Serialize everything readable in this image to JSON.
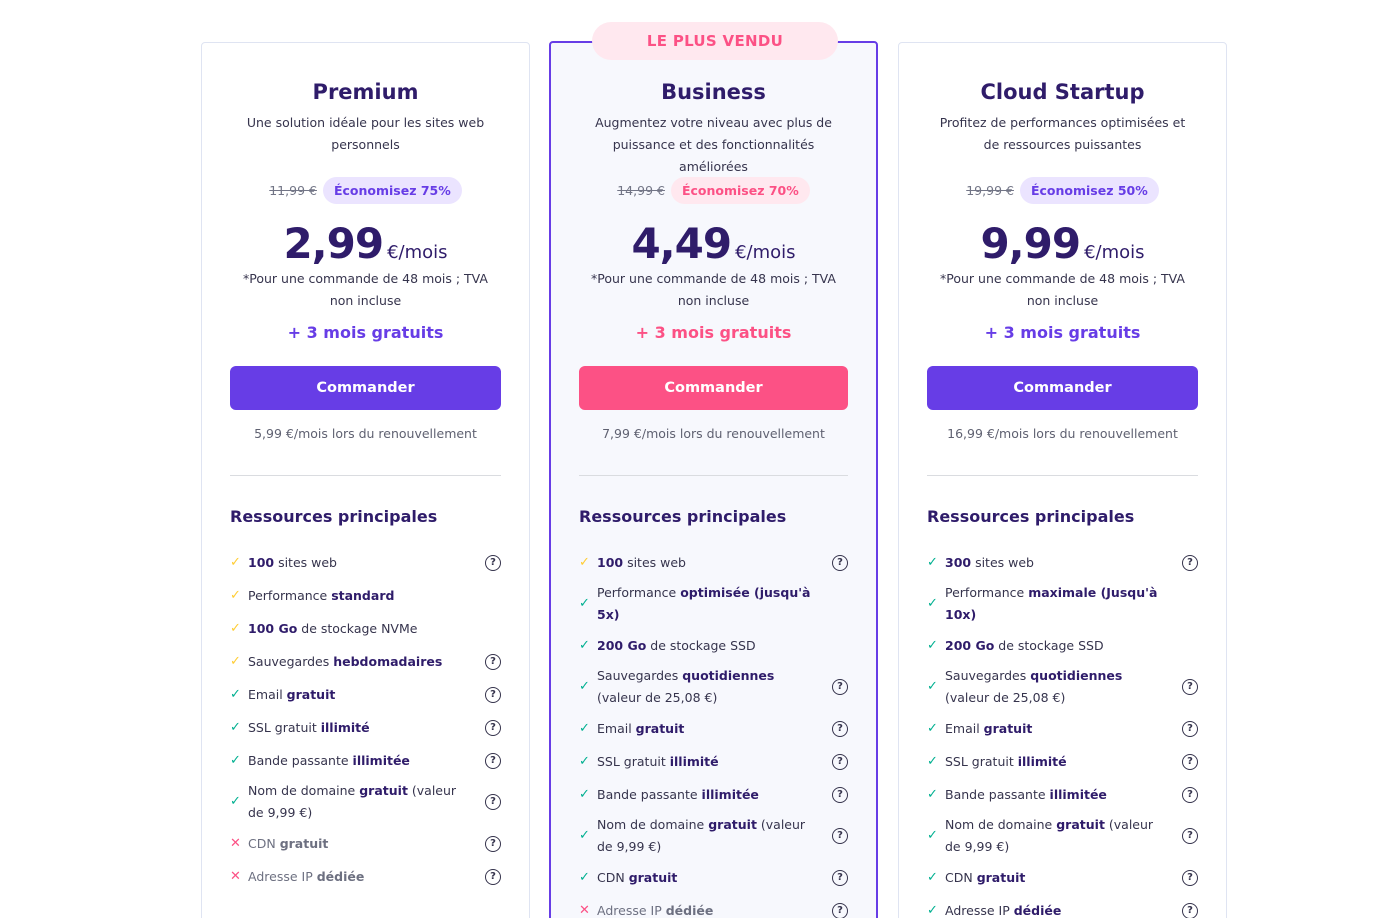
{
  "plans": [
    {
      "name": "Premium",
      "description": "Une solution idéale pour les sites web personnels",
      "old_price": "11,99 €",
      "saving": "Économisez 75%",
      "price": "2,99",
      "per": "€/mois",
      "price_note": "*Pour une commande de 48 mois ; TVA non incluse",
      "bonus": "+ 3 mois gratuits",
      "order_label": "Commander",
      "renewal": "5,99 €/mois lors du renouvellement",
      "resources_title": "Ressources principales",
      "features": [
        {
          "mark": "yellow",
          "pre": "",
          "bold": "100",
          "post": " sites web",
          "help": true
        },
        {
          "mark": "yellow",
          "pre": "Performance ",
          "bold": "standard",
          "post": "",
          "help": false
        },
        {
          "mark": "yellow",
          "pre": "",
          "bold": "100 Go",
          "post": " de stockage NVMe",
          "help": false
        },
        {
          "mark": "yellow",
          "pre": "Sauvegardes ",
          "bold": "hebdomadaires",
          "post": "",
          "help": true
        },
        {
          "mark": "green",
          "pre": "Email ",
          "bold": "gratuit",
          "post": "",
          "help": true
        },
        {
          "mark": "green",
          "pre": "SSL gratuit ",
          "bold": "illimité",
          "post": "",
          "help": true
        },
        {
          "mark": "green",
          "pre": "Bande passante ",
          "bold": "illimitée",
          "post": "",
          "help": true
        },
        {
          "mark": "green",
          "pre": "Nom de domaine ",
          "bold": "gratuit",
          "post": " (valeur de 9,99 €)",
          "help": true
        },
        {
          "mark": "red",
          "pre": "CDN ",
          "bold": "gratuit",
          "post": "",
          "help": true
        },
        {
          "mark": "red",
          "pre": "Adresse IP ",
          "bold": "dédiée",
          "post": "",
          "help": true
        }
      ]
    },
    {
      "badge": "LE PLUS VENDU",
      "name": "Business",
      "description": "Augmentez votre niveau avec plus de puissance et des fonctionnalités améliorées",
      "old_price": "14,99 €",
      "saving": "Économisez 70%",
      "price": "4,49",
      "per": "€/mois",
      "price_note": "*Pour une commande de 48 mois ; TVA non incluse",
      "bonus": "+ 3 mois gratuits",
      "order_label": "Commander",
      "renewal": "7,99 €/mois lors du renouvellement",
      "resources_title": "Ressources principales",
      "features": [
        {
          "mark": "yellow",
          "pre": "",
          "bold": "100",
          "post": " sites web",
          "help": true
        },
        {
          "mark": "green",
          "pre": "Performance ",
          "bold": "optimisée (jusqu'à 5x)",
          "post": "",
          "help": false
        },
        {
          "mark": "green",
          "pre": "",
          "bold": "200 Go",
          "post": " de stockage SSD",
          "help": false
        },
        {
          "mark": "green",
          "pre": "Sauvegardes ",
          "bold": "quotidiennes",
          "post": " (valeur de 25,08 €)",
          "help": true
        },
        {
          "mark": "green",
          "pre": "Email ",
          "bold": "gratuit",
          "post": "",
          "help": true
        },
        {
          "mark": "green",
          "pre": "SSL gratuit ",
          "bold": "illimité",
          "post": "",
          "help": true
        },
        {
          "mark": "green",
          "pre": "Bande passante ",
          "bold": "illimitée",
          "post": "",
          "help": true
        },
        {
          "mark": "green",
          "pre": "Nom de domaine ",
          "bold": "gratuit",
          "post": " (valeur de 9,99 €)",
          "help": true
        },
        {
          "mark": "green",
          "pre": "CDN ",
          "bold": "gratuit",
          "post": "",
          "help": true
        },
        {
          "mark": "red",
          "pre": "Adresse IP ",
          "bold": "dédiée",
          "post": "",
          "help": true
        }
      ]
    },
    {
      "name": "Cloud Startup",
      "description": "Profitez de performances optimisées et de ressources puissantes",
      "old_price": "19,99 €",
      "saving": "Économisez 50%",
      "price": "9,99",
      "per": "€/mois",
      "price_note": "*Pour une commande de 48 mois ; TVA non incluse",
      "bonus": "+ 3 mois gratuits",
      "order_label": "Commander",
      "renewal": "16,99 €/mois lors du renouvellement",
      "resources_title": "Ressources principales",
      "features": [
        {
          "mark": "green",
          "pre": "",
          "bold": "300",
          "post": " sites web",
          "help": true
        },
        {
          "mark": "green",
          "pre": "Performance ",
          "bold": "maximale (Jusqu'à 10x)",
          "post": "",
          "help": false
        },
        {
          "mark": "green",
          "pre": "",
          "bold": "200 Go",
          "post": " de stockage SSD",
          "help": false
        },
        {
          "mark": "green",
          "pre": "Sauvegardes ",
          "bold": "quotidiennes",
          "post": " (valeur de 25,08 €)",
          "help": true
        },
        {
          "mark": "green",
          "pre": "Email ",
          "bold": "gratuit",
          "post": "",
          "help": true
        },
        {
          "mark": "green",
          "pre": "SSL gratuit ",
          "bold": "illimité",
          "post": "",
          "help": true
        },
        {
          "mark": "green",
          "pre": "Bande passante ",
          "bold": "illimitée",
          "post": "",
          "help": true
        },
        {
          "mark": "green",
          "pre": "Nom de domaine ",
          "bold": "gratuit",
          "post": " (valeur de 9,99 €)",
          "help": true
        },
        {
          "mark": "green",
          "pre": "CDN ",
          "bold": "gratuit",
          "post": "",
          "help": true
        },
        {
          "mark": "green",
          "pre": "Adresse IP ",
          "bold": "dédiée",
          "post": "",
          "help": true
        }
      ]
    }
  ],
  "icons": {
    "check": "check-icon",
    "cross": "cross-icon",
    "help": "question-circle-icon"
  },
  "colors": {
    "purple": "#673de6",
    "pink": "#fc5185",
    "dark": "#2f1c6a",
    "yellow": "#ffcd35",
    "green": "#00b090"
  }
}
